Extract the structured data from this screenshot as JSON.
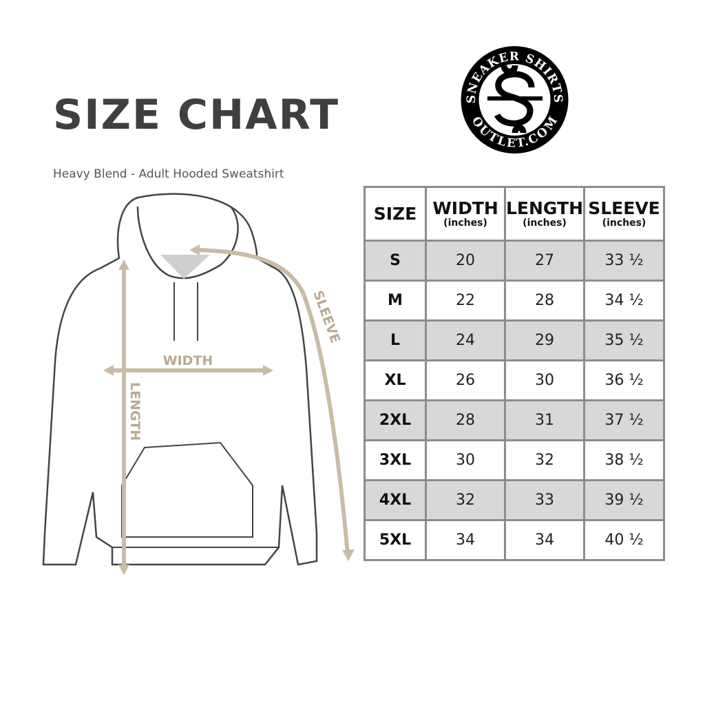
{
  "header": {
    "title": "SIZE CHART",
    "subtitle": "Heavy Blend - Adult Hooded Sweatshirt"
  },
  "logo": {
    "text_top": "SNEAKER SHIRTS",
    "text_bottom": "OUTLET.COM",
    "monogram": "SS"
  },
  "diagram": {
    "labels": {
      "width": "WIDTH",
      "length": "LENGTH",
      "sleeve": "SLEEVE"
    },
    "accent_color": "#c9bca7"
  },
  "table": {
    "headers": [
      {
        "label": "SIZE",
        "unit": ""
      },
      {
        "label": "WIDTH",
        "unit": "(inches)"
      },
      {
        "label": "LENGTH",
        "unit": "(inches)"
      },
      {
        "label": "SLEEVE",
        "unit": "(inches)"
      }
    ],
    "rows": [
      {
        "size": "S",
        "width": "20",
        "length": "27",
        "sleeve": "33 ½"
      },
      {
        "size": "M",
        "width": "22",
        "length": "28",
        "sleeve": "34 ½"
      },
      {
        "size": "L",
        "width": "24",
        "length": "29",
        "sleeve": "35 ½"
      },
      {
        "size": "XL",
        "width": "26",
        "length": "30",
        "sleeve": "36 ½"
      },
      {
        "size": "2XL",
        "width": "28",
        "length": "31",
        "sleeve": "37 ½"
      },
      {
        "size": "3XL",
        "width": "30",
        "length": "32",
        "sleeve": "38 ½"
      },
      {
        "size": "4XL",
        "width": "32",
        "length": "33",
        "sleeve": "39 ½"
      },
      {
        "size": "5XL",
        "width": "34",
        "length": "34",
        "sleeve": "40 ½"
      }
    ]
  }
}
